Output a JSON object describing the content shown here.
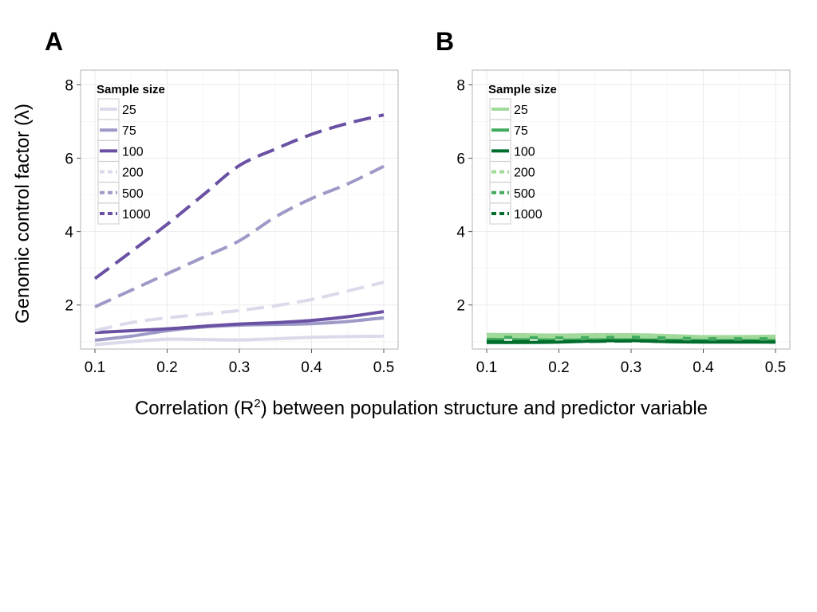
{
  "xlabel_parts": {
    "pre": "Correlation (R",
    "sup": "2",
    "post": ") between population structure and predictor variable"
  },
  "ylabel": "Genomic control factor (λ)",
  "legend_title": "Sample size",
  "chart_data": [
    {
      "panel": "A",
      "type": "line",
      "xlim": [
        0.1,
        0.5
      ],
      "ylim": [
        0.8,
        8.4
      ],
      "x_ticks": [
        0.1,
        0.2,
        0.3,
        0.4,
        0.5
      ],
      "x_tick_labels": [
        "0.1",
        "0.2",
        "0.3",
        "0.4",
        "0.5"
      ],
      "y_ticks": [
        2,
        4,
        6,
        8
      ],
      "y_tick_labels": [
        "2",
        "4",
        "6",
        "8"
      ],
      "grid": true,
      "legend_position": "top-left",
      "x": [
        0.1,
        0.15,
        0.2,
        0.25,
        0.3,
        0.35,
        0.4,
        0.45,
        0.5
      ],
      "series": [
        {
          "name": "25",
          "color": "#dadaeb",
          "dash": "solid",
          "values": [
            0.92,
            1.0,
            1.07,
            1.06,
            1.05,
            1.08,
            1.12,
            1.14,
            1.15
          ]
        },
        {
          "name": "75",
          "color": "#9e9ac8",
          "dash": "solid",
          "values": [
            1.04,
            1.15,
            1.3,
            1.4,
            1.45,
            1.47,
            1.49,
            1.55,
            1.65
          ]
        },
        {
          "name": "100",
          "color": "#6a51a3",
          "dash": "solid",
          "values": [
            1.25,
            1.3,
            1.35,
            1.42,
            1.48,
            1.52,
            1.58,
            1.68,
            1.82
          ]
        },
        {
          "name": "200",
          "color": "#dadaeb",
          "dash": "dashed",
          "values": [
            1.3,
            1.52,
            1.65,
            1.75,
            1.85,
            1.98,
            2.15,
            2.38,
            2.62
          ]
        },
        {
          "name": "500",
          "color": "#9e9ac8",
          "dash": "dashed",
          "values": [
            1.95,
            2.4,
            2.85,
            3.3,
            3.75,
            4.4,
            4.9,
            5.3,
            5.78
          ]
        },
        {
          "name": "1000",
          "color": "#6a51a3",
          "dash": "dashed",
          "values": [
            2.72,
            3.45,
            4.2,
            5.0,
            5.8,
            6.25,
            6.65,
            6.95,
            7.18
          ]
        }
      ]
    },
    {
      "panel": "B",
      "type": "line",
      "xlim": [
        0.1,
        0.5
      ],
      "ylim": [
        0.8,
        8.4
      ],
      "x_ticks": [
        0.1,
        0.2,
        0.3,
        0.4,
        0.5
      ],
      "x_tick_labels": [
        "0.1",
        "0.2",
        "0.3",
        "0.4",
        "0.5"
      ],
      "y_ticks": [
        2,
        4,
        6,
        8
      ],
      "y_tick_labels": [
        "2",
        "4",
        "6",
        "8"
      ],
      "grid": true,
      "legend_position": "top-left",
      "x": [
        0.1,
        0.15,
        0.2,
        0.25,
        0.3,
        0.35,
        0.4,
        0.45,
        0.5
      ],
      "series": [
        {
          "name": "25",
          "color": "#a1d99b",
          "dash": "solid",
          "values": [
            1.2,
            1.19,
            1.18,
            1.19,
            1.19,
            1.17,
            1.14,
            1.14,
            1.15
          ]
        },
        {
          "name": "75",
          "color": "#41ab5d",
          "dash": "solid",
          "values": [
            1.12,
            1.11,
            1.1,
            1.11,
            1.12,
            1.1,
            1.08,
            1.08,
            1.08
          ]
        },
        {
          "name": "100",
          "color": "#006d2c",
          "dash": "solid",
          "values": [
            0.98,
            0.98,
            0.99,
            1.02,
            1.03,
            1.0,
            0.99,
            0.99,
            0.99
          ]
        },
        {
          "name": "200",
          "color": "#a1d99b",
          "dash": "dashed",
          "values": [
            1.15,
            1.14,
            1.13,
            1.12,
            1.13,
            1.12,
            1.1,
            1.1,
            1.1
          ]
        },
        {
          "name": "500",
          "color": "#41ab5d",
          "dash": "dashed",
          "values": [
            1.05,
            1.04,
            1.04,
            1.05,
            1.05,
            1.04,
            1.03,
            1.03,
            1.03
          ]
        },
        {
          "name": "1000",
          "color": "#006d2c",
          "dash": "dashed",
          "values": [
            1.0,
            1.0,
            1.0,
            1.01,
            1.02,
            1.01,
            1.0,
            1.0,
            0.99
          ]
        }
      ]
    }
  ]
}
